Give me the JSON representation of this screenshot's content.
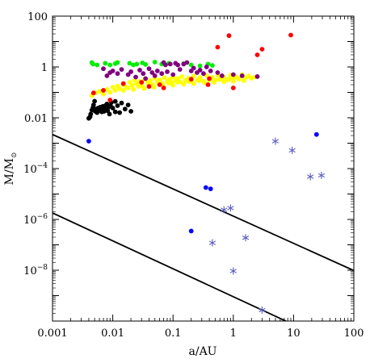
{
  "chart_data": {
    "type": "scatter",
    "xlabel": "a/AU",
    "ylabel": "M/M",
    "ylabel_sub": "⊙",
    "xscale": "log",
    "yscale": "log",
    "xlim": [
      0.001,
      100
    ],
    "ylim": [
      1e-10,
      100
    ],
    "x_ticks": [
      {
        "value": 0.001,
        "label": "0.001"
      },
      {
        "value": 0.01,
        "label": "0.01"
      },
      {
        "value": 0.1,
        "label": "0.1"
      },
      {
        "value": 1,
        "label": "1"
      },
      {
        "value": 10,
        "label": "10"
      },
      {
        "value": 100,
        "label": "100"
      }
    ],
    "y_ticks": [
      {
        "value": 100,
        "base": "100",
        "exp": ""
      },
      {
        "value": 1,
        "base": "1",
        "exp": ""
      },
      {
        "value": 0.01,
        "base": "0.01",
        "exp": ""
      },
      {
        "value": 0.0001,
        "base": "10",
        "exp": "−4"
      },
      {
        "value": 1e-06,
        "base": "10",
        "exp": "−6"
      },
      {
        "value": 1e-08,
        "base": "10",
        "exp": "−8"
      }
    ],
    "grid": false,
    "lines": [
      {
        "color": "#000000",
        "points": [
          [
            0.001,
            0.0022
          ],
          [
            100,
            9.7e-09
          ]
        ]
      },
      {
        "color": "#000000",
        "points": [
          [
            0.001,
            1.8e-06
          ],
          [
            14,
            5e-11
          ]
        ]
      }
    ],
    "series": [
      {
        "color": "#000000",
        "marker": "dot",
        "points": [
          [
            0.004,
            0.0095
          ],
          [
            0.0042,
            0.011
          ],
          [
            0.0043,
            0.014
          ],
          [
            0.0045,
            0.02
          ],
          [
            0.0047,
            0.025
          ],
          [
            0.0048,
            0.032
          ],
          [
            0.005,
            0.045
          ],
          [
            0.0051,
            0.018
          ],
          [
            0.0053,
            0.022
          ],
          [
            0.0055,
            0.016
          ],
          [
            0.0057,
            0.024
          ],
          [
            0.006,
            0.019
          ],
          [
            0.0062,
            0.026
          ],
          [
            0.0064,
            0.021
          ],
          [
            0.0066,
            0.017
          ],
          [
            0.0068,
            0.028
          ],
          [
            0.007,
            0.023
          ],
          [
            0.0072,
            0.018
          ],
          [
            0.0075,
            0.03
          ],
          [
            0.0078,
            0.022
          ],
          [
            0.008,
            0.035
          ],
          [
            0.0082,
            0.019
          ],
          [
            0.0085,
            0.026
          ],
          [
            0.0088,
            0.014
          ],
          [
            0.0092,
            0.029
          ],
          [
            0.0095,
            0.04
          ],
          [
            0.01,
            0.024
          ],
          [
            0.011,
            0.017
          ],
          [
            0.012,
            0.03
          ],
          [
            0.013,
            0.016
          ],
          [
            0.014,
            0.038
          ],
          [
            0.016,
            0.022
          ],
          [
            0.018,
            0.032
          ],
          [
            0.02,
            0.018
          ],
          [
            0.011,
            0.044
          ]
        ]
      },
      {
        "color": "#ffff00",
        "marker": "dot",
        "points": [
          [
            0.0045,
            0.075
          ],
          [
            0.0052,
            0.095
          ],
          [
            0.006,
            0.11
          ],
          [
            0.007,
            0.085
          ],
          [
            0.008,
            0.13
          ],
          [
            0.009,
            0.1
          ],
          [
            0.01,
            0.16
          ],
          [
            0.011,
            0.12
          ],
          [
            0.012,
            0.18
          ],
          [
            0.013,
            0.14
          ],
          [
            0.015,
            0.2
          ],
          [
            0.017,
            0.16
          ],
          [
            0.019,
            0.25
          ],
          [
            0.021,
            0.19
          ],
          [
            0.023,
            0.3
          ],
          [
            0.025,
            0.22
          ],
          [
            0.028,
            0.27
          ],
          [
            0.031,
            0.18
          ],
          [
            0.034,
            0.33
          ],
          [
            0.038,
            0.24
          ],
          [
            0.042,
            0.29
          ],
          [
            0.046,
            0.2
          ],
          [
            0.05,
            0.36
          ],
          [
            0.055,
            0.26
          ],
          [
            0.06,
            0.31
          ],
          [
            0.066,
            0.22
          ],
          [
            0.072,
            0.38
          ],
          [
            0.08,
            0.27
          ],
          [
            0.088,
            0.33
          ],
          [
            0.095,
            0.24
          ],
          [
            0.1,
            0.4
          ],
          [
            0.11,
            0.29
          ],
          [
            0.12,
            0.35
          ],
          [
            0.13,
            0.26
          ],
          [
            0.14,
            0.42
          ],
          [
            0.16,
            0.3
          ],
          [
            0.18,
            0.36
          ],
          [
            0.2,
            0.27
          ],
          [
            0.22,
            0.44
          ],
          [
            0.25,
            0.31
          ],
          [
            0.28,
            0.38
          ],
          [
            0.32,
            0.28
          ],
          [
            0.36,
            0.46
          ],
          [
            0.4,
            0.33
          ],
          [
            0.45,
            0.39
          ],
          [
            0.5,
            0.3
          ],
          [
            0.56,
            0.47
          ],
          [
            0.63,
            0.34
          ],
          [
            0.7,
            0.4
          ],
          [
            0.8,
            0.31
          ],
          [
            0.9,
            0.48
          ],
          [
            1.0,
            0.35
          ],
          [
            1.1,
            0.42
          ],
          [
            1.25,
            0.33
          ],
          [
            1.4,
            0.5
          ],
          [
            1.6,
            0.37
          ],
          [
            1.8,
            0.44
          ],
          [
            2.0,
            0.36
          ],
          [
            2.3,
            0.4
          ],
          [
            0.015,
            0.12
          ],
          [
            0.018,
            0.15
          ],
          [
            0.022,
            0.13
          ],
          [
            0.027,
            0.17
          ],
          [
            0.033,
            0.14
          ],
          [
            0.04,
            0.19
          ],
          [
            0.048,
            0.16
          ],
          [
            0.058,
            0.21
          ],
          [
            0.07,
            0.17
          ],
          [
            0.085,
            0.23
          ],
          [
            0.1,
            0.19
          ],
          [
            0.12,
            0.25
          ],
          [
            0.15,
            0.21
          ],
          [
            0.18,
            0.27
          ],
          [
            0.22,
            0.22
          ],
          [
            0.27,
            0.29
          ],
          [
            0.33,
            0.24
          ],
          [
            0.4,
            0.3
          ],
          [
            0.48,
            0.25
          ],
          [
            0.58,
            0.32
          ],
          [
            0.7,
            0.26
          ],
          [
            0.85,
            0.34
          ],
          [
            1.0,
            0.27
          ],
          [
            1.2,
            0.36
          ],
          [
            1.5,
            0.29
          ]
        ]
      },
      {
        "color": "#00ee00",
        "marker": "dot",
        "points": [
          [
            0.0045,
            1.5
          ],
          [
            0.0047,
            1.3
          ],
          [
            0.0055,
            1.2
          ],
          [
            0.0075,
            1.4
          ],
          [
            0.009,
            1.2
          ],
          [
            0.011,
            1.35
          ],
          [
            0.012,
            1.5
          ],
          [
            0.019,
            1.4
          ],
          [
            0.022,
            1.2
          ],
          [
            0.025,
            1.3
          ],
          [
            0.031,
            1.45
          ],
          [
            0.035,
            1.25
          ],
          [
            0.05,
            1.55
          ],
          [
            0.065,
            1.3
          ],
          [
            0.085,
            1.4
          ],
          [
            0.15,
            1.35
          ],
          [
            0.2,
            1.2
          ],
          [
            0.28,
            1.1
          ],
          [
            0.38,
            1.3
          ],
          [
            0.45,
            1.15
          ]
        ]
      },
      {
        "color": "#800080",
        "marker": "dot",
        "points": [
          [
            0.007,
            0.85
          ],
          [
            0.008,
            0.45
          ],
          [
            0.009,
            0.6
          ],
          [
            0.01,
            0.7
          ],
          [
            0.012,
            0.55
          ],
          [
            0.014,
            0.8
          ],
          [
            0.018,
            0.5
          ],
          [
            0.02,
            0.65
          ],
          [
            0.024,
            0.4
          ],
          [
            0.028,
            0.75
          ],
          [
            0.032,
            0.55
          ],
          [
            0.035,
            0.35
          ],
          [
            0.04,
            0.85
          ],
          [
            0.045,
            0.6
          ],
          [
            0.05,
            0.45
          ],
          [
            0.055,
            0.7
          ],
          [
            0.065,
            0.55
          ],
          [
            0.07,
            1.5
          ],
          [
            0.075,
            1.2
          ],
          [
            0.08,
            0.65
          ],
          [
            0.09,
            1.3
          ],
          [
            0.1,
            0.5
          ],
          [
            0.11,
            1.4
          ],
          [
            0.12,
            1.2
          ],
          [
            0.13,
            0.8
          ],
          [
            0.15,
            1.3
          ],
          [
            0.17,
            1.5
          ],
          [
            0.2,
            0.7
          ],
          [
            0.22,
            0.9
          ],
          [
            0.25,
            0.6
          ],
          [
            0.28,
            0.75
          ],
          [
            0.32,
            0.55
          ],
          [
            0.36,
            1.0
          ],
          [
            0.42,
            0.7
          ],
          [
            0.55,
            0.6
          ],
          [
            0.65,
            0.45
          ],
          [
            1.0,
            0.5
          ],
          [
            1.4,
            0.45
          ],
          [
            2.5,
            0.42
          ]
        ]
      },
      {
        "color": "#ff0000",
        "marker": "dot",
        "points": [
          [
            0.0048,
            0.095
          ],
          [
            0.007,
            0.12
          ],
          [
            0.009,
            0.05
          ],
          [
            0.015,
            0.22
          ],
          [
            0.03,
            0.25
          ],
          [
            0.04,
            0.17
          ],
          [
            0.06,
            0.2
          ],
          [
            0.07,
            0.15
          ],
          [
            0.2,
            0.33
          ],
          [
            0.38,
            0.2
          ],
          [
            0.4,
            0.35
          ],
          [
            0.55,
            6.0
          ],
          [
            0.85,
            17.0
          ],
          [
            1.0,
            0.15
          ],
          [
            2.5,
            3.0
          ],
          [
            3.0,
            5.0
          ],
          [
            9.0,
            18.0
          ]
        ]
      },
      {
        "color": "#0000ff",
        "marker": "dot",
        "points": [
          [
            0.004,
            0.0012
          ],
          [
            0.35,
            1.8e-05
          ],
          [
            0.42,
            1.6e-05
          ],
          [
            0.2,
            3.5e-07
          ],
          [
            24,
            0.0022
          ]
        ]
      },
      {
        "color": "#5a5abf",
        "marker": "asterisk",
        "points": [
          [
            0.7,
            2.4e-06
          ],
          [
            0.9,
            2.8e-06
          ],
          [
            1.6,
            1.9e-07
          ],
          [
            1.0,
            9.3e-09
          ],
          [
            0.45,
            1.2e-07
          ],
          [
            5.0,
            0.0012
          ],
          [
            9.5,
            0.00052
          ],
          [
            19,
            4.8e-05
          ],
          [
            29,
            5.4e-05
          ],
          [
            3.0,
            2.7e-10
          ]
        ]
      }
    ]
  }
}
